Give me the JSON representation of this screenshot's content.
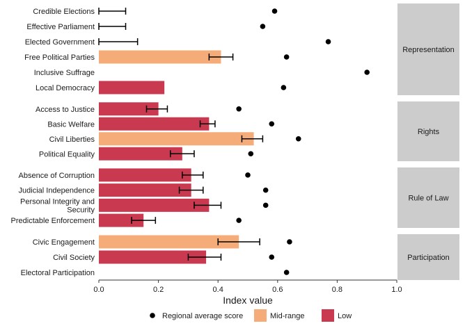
{
  "chart_data": {
    "type": "bar",
    "xlabel": "Index value",
    "ylabel": "",
    "xlim": [
      0,
      1
    ],
    "x_ticks": [
      "0.0",
      "0.2",
      "0.4",
      "0.6",
      "0.8",
      "1.0"
    ],
    "grid": false,
    "legend": {
      "position": "bottom",
      "entries": [
        {
          "label": "Regional average score",
          "kind": "point",
          "color": "#000000"
        },
        {
          "label": "Mid-range",
          "kind": "bar",
          "color": "#f5ac78"
        },
        {
          "label": "Low",
          "kind": "bar",
          "color": "#c93a50"
        }
      ]
    },
    "colors": {
      "Mid-range": "#f5ac78",
      "Low": "#c93a50",
      "strip": "#cccccc"
    },
    "panels": [
      {
        "label": "Representation",
        "rows": [
          {
            "name": "Credible Elections",
            "value": 0,
            "err": [
              0,
              0.09
            ],
            "category": "Low",
            "regional": 0.59
          },
          {
            "name": "Effective Parliament",
            "value": 0,
            "err": [
              0,
              0.09
            ],
            "category": "Low",
            "regional": 0.55
          },
          {
            "name": "Elected Government",
            "value": 0,
            "err": [
              0,
              0.13
            ],
            "category": "Low",
            "regional": 0.77
          },
          {
            "name": "Free Political Parties",
            "value": 0.41,
            "err": [
              0.37,
              0.45
            ],
            "category": "Mid-range",
            "regional": 0.63
          },
          {
            "name": "Inclusive Suffrage",
            "value": 0,
            "err": null,
            "category": "Low",
            "regional": 0.9
          },
          {
            "name": "Local Democracy",
            "value": 0.22,
            "err": null,
            "category": "Low",
            "regional": 0.62
          }
        ]
      },
      {
        "label": "Rights",
        "rows": [
          {
            "name": "Access to Justice",
            "value": 0.2,
            "err": [
              0.16,
              0.23
            ],
            "category": "Low",
            "regional": 0.47
          },
          {
            "name": "Basic Welfare",
            "value": 0.37,
            "err": [
              0.34,
              0.39
            ],
            "category": "Low",
            "regional": 0.58
          },
          {
            "name": "Civil Liberties",
            "value": 0.52,
            "err": [
              0.48,
              0.55
            ],
            "category": "Mid-range",
            "regional": 0.67
          },
          {
            "name": "Political Equality",
            "value": 0.28,
            "err": [
              0.24,
              0.32
            ],
            "category": "Low",
            "regional": 0.51
          }
        ]
      },
      {
        "label": "Rule of Law",
        "rows": [
          {
            "name": "Absence of Corruption",
            "value": 0.31,
            "err": [
              0.28,
              0.35
            ],
            "category": "Low",
            "regional": 0.5
          },
          {
            "name": "Judicial Independence",
            "value": 0.31,
            "err": [
              0.27,
              0.35
            ],
            "category": "Low",
            "regional": 0.56
          },
          {
            "name": "Personal Integrity and\nSecurity",
            "value": 0.37,
            "err": [
              0.32,
              0.41
            ],
            "category": "Low",
            "regional": 0.56
          },
          {
            "name": "Predictable Enforcement",
            "value": 0.15,
            "err": [
              0.11,
              0.19
            ],
            "category": "Low",
            "regional": 0.47
          }
        ]
      },
      {
        "label": "Participation",
        "rows": [
          {
            "name": "Civic Engagement",
            "value": 0.47,
            "err": [
              0.4,
              0.54
            ],
            "category": "Mid-range",
            "regional": 0.64
          },
          {
            "name": "Civil Society",
            "value": 0.36,
            "err": [
              0.3,
              0.41
            ],
            "category": "Low",
            "regional": 0.58
          },
          {
            "name": "Electoral Participation",
            "value": 0,
            "err": null,
            "category": "Low",
            "regional": 0.63
          }
        ]
      }
    ]
  }
}
